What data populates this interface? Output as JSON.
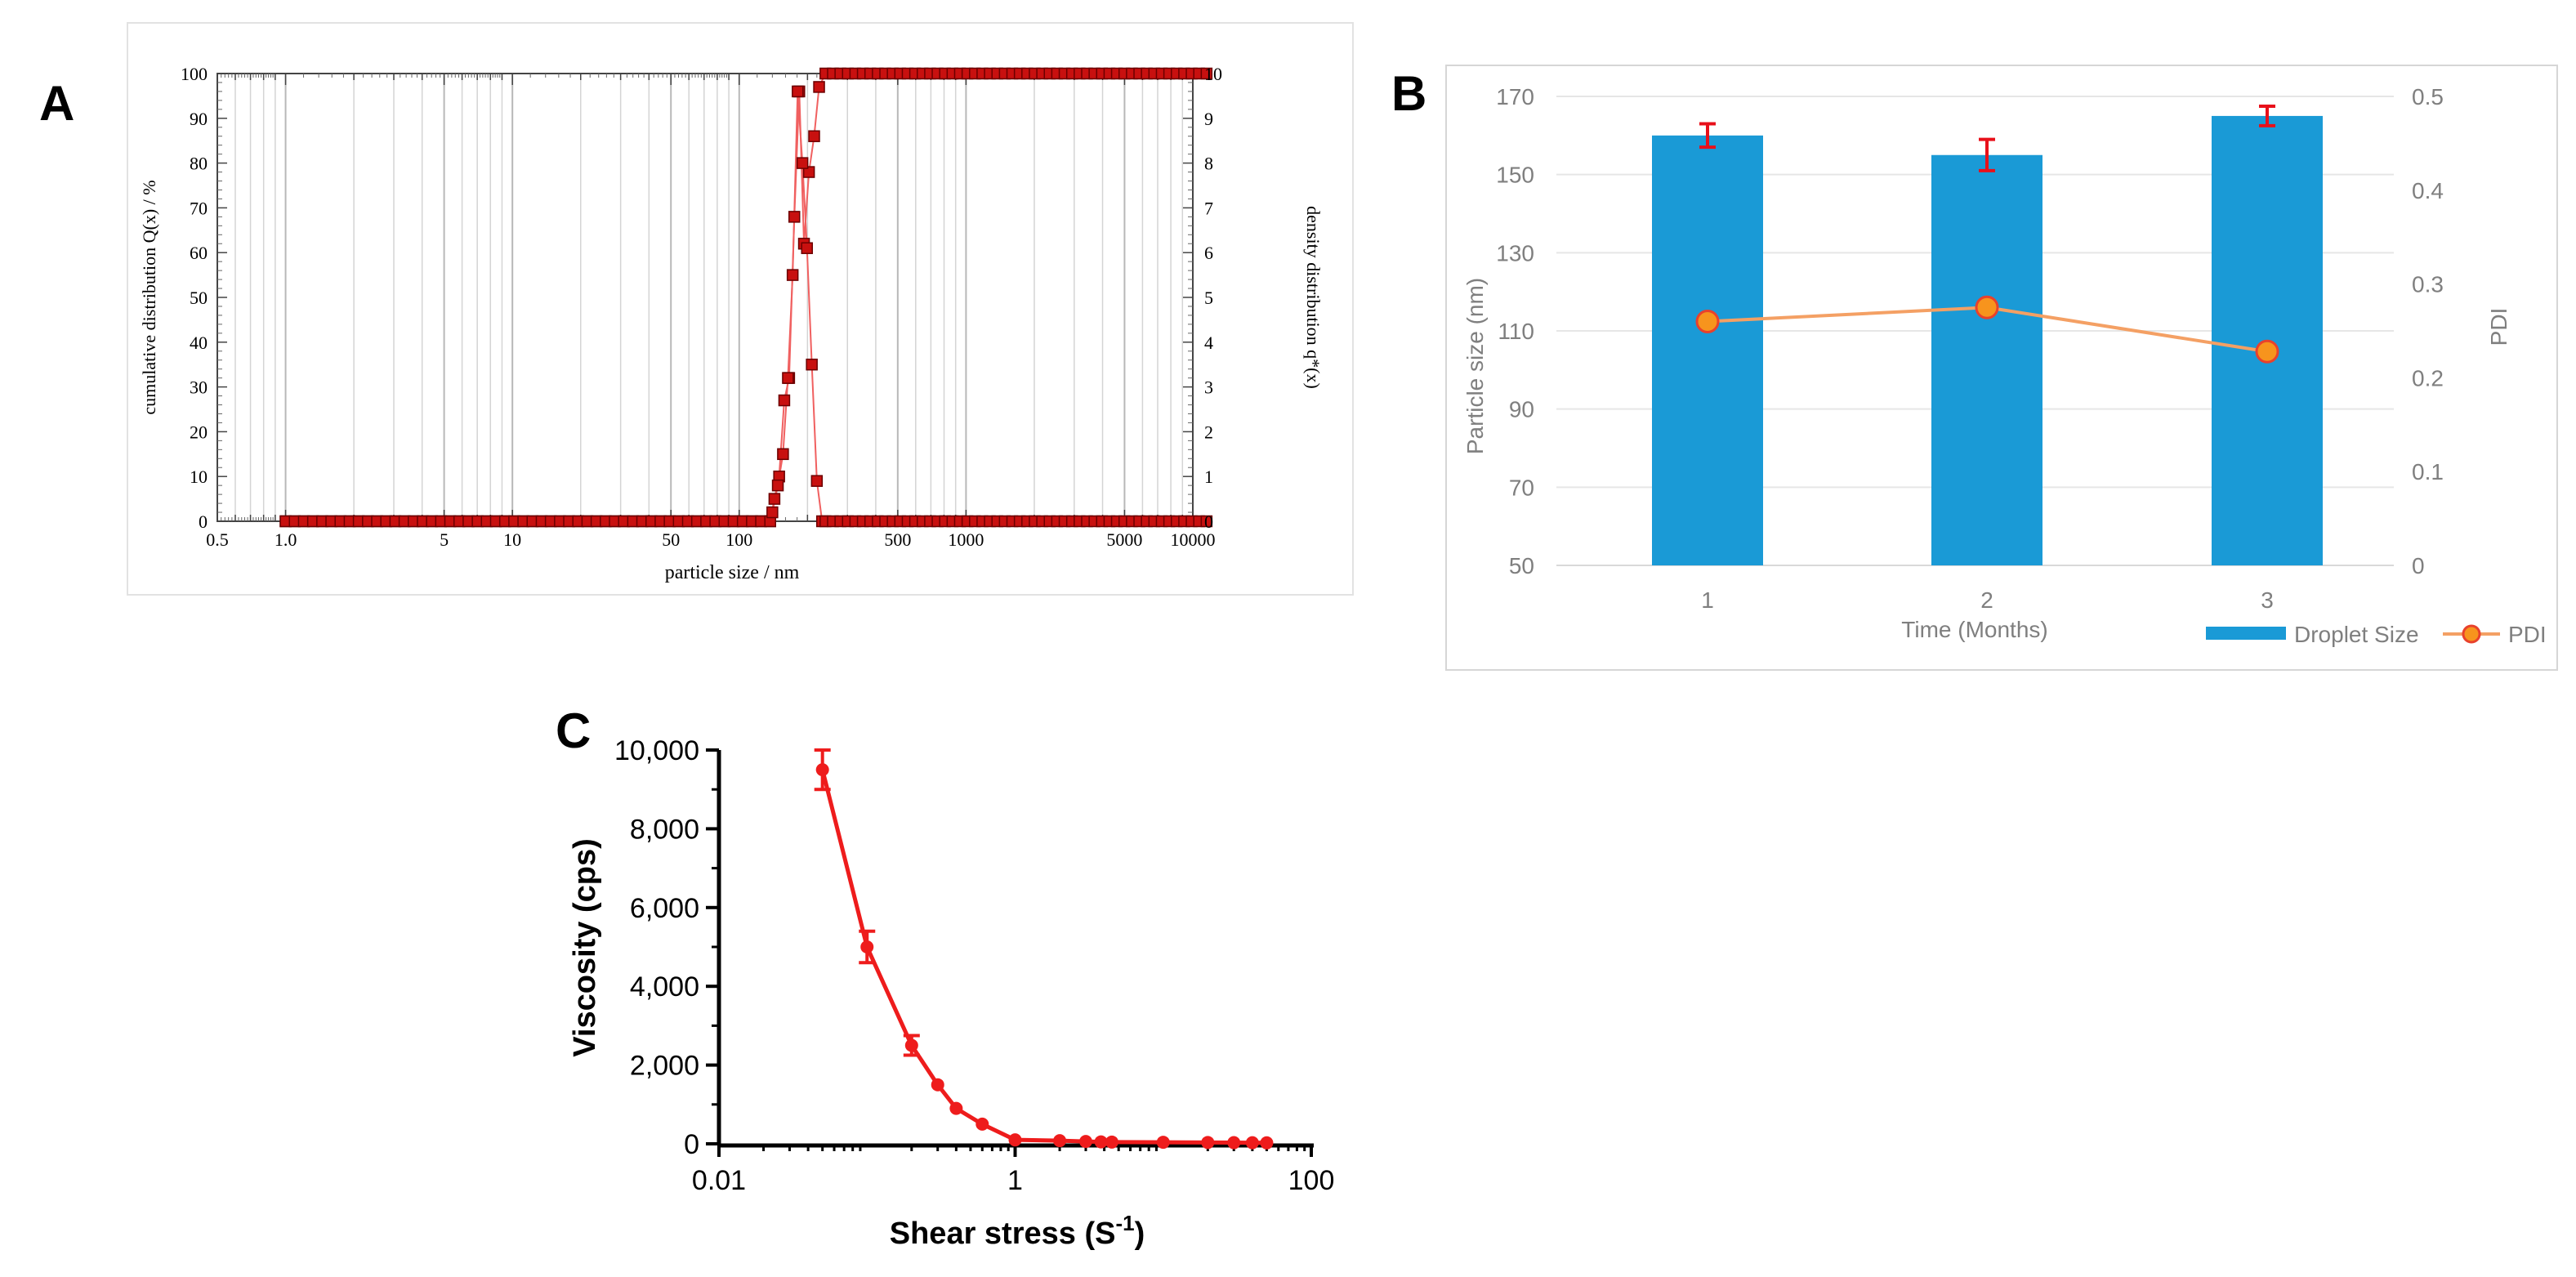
{
  "panels": {
    "a": "A",
    "b": "B",
    "c": "C"
  },
  "colors": {
    "red_marker": "#c8100f",
    "marker_edge": "#6b0000",
    "red_line": "#f06060",
    "bar_blue": "#1a9ad6",
    "pdi_orange": "#f4a064",
    "pdi_marker_fill": "#f7941d",
    "pdi_marker_edge": "#e8412c",
    "errorbar_red": "#e8101a",
    "c_red": "#ee1c1c"
  },
  "chart_data": [
    {
      "id": "A",
      "type": "line",
      "xscale": "log",
      "xlim": [
        0.5,
        10000
      ],
      "xlabel": "particle size / nm",
      "ylabel_left": "cumulative distribution Q(x) / %",
      "ylabel_right": "density distribution q*(x)",
      "ylim_left": [
        0,
        100
      ],
      "ylim_right": [
        0,
        10
      ],
      "grid": true,
      "x_tick_labels": [
        "0.5",
        "1.0",
        "5",
        "10",
        "50",
        "100",
        "500",
        "1000",
        "5000",
        "10000"
      ],
      "x_tick_values": [
        0.5,
        1,
        5,
        10,
        50,
        100,
        500,
        1000,
        5000,
        10000
      ],
      "y_left_ticks": [
        0,
        10,
        20,
        30,
        40,
        50,
        60,
        70,
        80,
        90,
        100
      ],
      "y_right_ticks": [
        0,
        1,
        2,
        3,
        4,
        5,
        6,
        7,
        8,
        9,
        10
      ],
      "series": [
        {
          "name": "Q(x)",
          "x": [
            143,
            150,
            158,
            166,
            175,
            184,
            193,
            203,
            214,
            225
          ],
          "y": [
            5,
            10,
            27,
            32,
            68,
            96,
            62,
            78,
            86,
            97
          ]
        },
        {
          "name": "q*(x)",
          "x": [
            140,
            148,
            156,
            164,
            172,
            181,
            190,
            199,
            209,
            220,
            232
          ],
          "y": [
            0.2,
            0.8,
            1.5,
            3.2,
            5.5,
            9.6,
            8,
            6.1,
            3.5,
            0.9,
            0
          ]
        }
      ]
    },
    {
      "id": "B",
      "type": "bar",
      "categories": [
        "1",
        "2",
        "3"
      ],
      "xlabel": "Time (Months)",
      "ylabel": "Particle size (nm)",
      "ylabel_right": "PDI",
      "ylim": [
        50,
        170
      ],
      "y_ticks": [
        50,
        70,
        90,
        110,
        130,
        150,
        170
      ],
      "ylim_right": [
        0,
        0.5
      ],
      "y_right_ticks": [
        "0",
        "0.1",
        "0.2",
        "0.3",
        "0.4",
        "0.5"
      ],
      "legend": "bottom-right",
      "series": [
        {
          "name": "Droplet Size",
          "kind": "bar",
          "values": [
            160,
            155,
            165
          ],
          "errors": [
            3,
            4,
            2.5
          ]
        },
        {
          "name": "PDI",
          "kind": "line",
          "axis": "right",
          "values": [
            0.26,
            0.275,
            0.228
          ]
        }
      ]
    },
    {
      "id": "C",
      "type": "line",
      "xscale": "log",
      "xlim": [
        0.01,
        100
      ],
      "x_tick_labels": [
        "0.01",
        "1",
        "100"
      ],
      "xlabel": "Shear stress (S",
      "xlabel_sup": "-1",
      "xlabel_end": ")",
      "ylabel": "Viscosity (cps)",
      "ylim": [
        0,
        10000
      ],
      "y_ticks": [
        "0",
        "2,000",
        "4,000",
        "6,000",
        "8,000",
        "10,000"
      ],
      "series": [
        {
          "x": [
            0.05,
            0.1,
            0.2,
            0.3,
            0.4,
            0.6,
            1,
            2,
            3,
            3.8,
            4.5,
            10,
            20,
            30,
            40,
            50
          ],
          "y": [
            9500,
            5000,
            2500,
            1500,
            900,
            500,
            100,
            80,
            60,
            50,
            45,
            40,
            35,
            30,
            28,
            25
          ],
          "errors": [
            500,
            400,
            250,
            0,
            0,
            0,
            0,
            0,
            0,
            0,
            0,
            0,
            0,
            0,
            0,
            0
          ]
        }
      ]
    }
  ]
}
